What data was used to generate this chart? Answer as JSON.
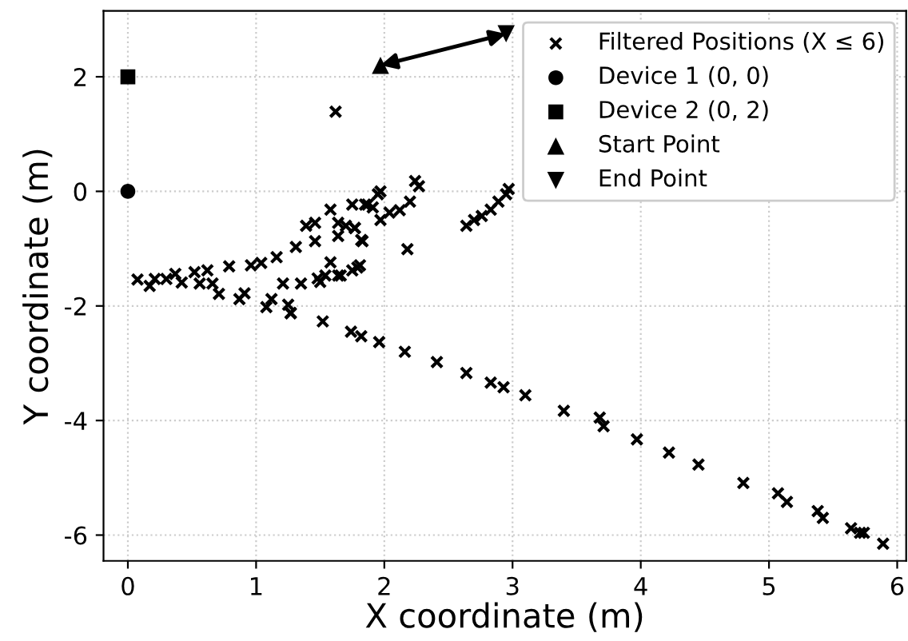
{
  "chart_data": {
    "type": "scatter",
    "xlabel": "X coordinate (m)",
    "ylabel": "Y coordinate (m)",
    "xlim": [
      -0.19,
      6.07
    ],
    "ylim": [
      -6.45,
      3.15
    ],
    "xticks": [
      0,
      1,
      2,
      3,
      4,
      5,
      6
    ],
    "yticks": [
      -6,
      -4,
      -2,
      0,
      2
    ],
    "grid": true,
    "legend": "top right",
    "series": [
      {
        "name": "Filtered Positions (X ≤ 6)",
        "color": "#000000",
        "marker": "cross",
        "x": [
          0.075,
          0.17,
          0.21,
          0.3,
          0.37,
          0.42,
          0.52,
          0.56,
          0.62,
          0.66,
          0.71,
          0.79,
          0.87,
          0.91,
          0.96,
          1.04,
          1.08,
          1.12,
          1.16,
          1.21,
          1.25,
          1.27,
          1.31,
          1.35,
          1.39,
          1.46,
          1.48,
          1.54,
          1.58,
          1.58,
          1.64,
          1.66,
          1.7,
          1.75,
          1.77,
          1.79,
          1.82,
          1.85,
          1.91,
          1.95,
          1.46,
          1.64,
          1.77,
          1.83,
          1.87,
          1.97,
          1.97,
          2.04,
          2.12,
          2.18,
          2.2,
          2.24,
          2.27,
          2.64,
          2.7,
          2.76,
          2.83,
          2.89,
          2.95,
          2.97,
          1.5,
          1.64,
          1.75,
          1.81,
          1.27,
          1.62,
          1.52,
          1.74,
          1.82,
          1.96,
          2.16,
          2.41,
          2.64,
          2.83,
          2.93,
          3.1,
          3.4,
          3.68,
          3.71,
          3.97,
          4.22,
          4.45,
          4.8,
          5.07,
          5.14,
          5.38,
          5.42,
          5.64,
          5.71,
          5.74,
          5.89
        ],
        "values": [
          -1.54,
          -1.65,
          -1.53,
          -1.53,
          -1.44,
          -1.59,
          -1.41,
          -1.61,
          -1.38,
          -1.61,
          -1.79,
          -1.31,
          -1.88,
          -1.78,
          -1.29,
          -1.25,
          -2.02,
          -1.88,
          -1.15,
          -1.61,
          -1.98,
          -2.13,
          -0.97,
          -1.61,
          -0.6,
          -0.55,
          -1.52,
          -1.47,
          -1.24,
          -0.32,
          -0.78,
          -1.47,
          -0.6,
          -0.23,
          -0.64,
          -1.33,
          -0.85,
          -0.23,
          -0.28,
          -0.05,
          -0.87,
          -0.55,
          -0.64,
          -0.87,
          -0.23,
          -0.5,
          0.0,
          -0.37,
          -0.33,
          -1.01,
          -0.18,
          0.18,
          0.09,
          -0.6,
          -0.5,
          -0.43,
          -0.32,
          -0.18,
          -0.05,
          0.04,
          -1.58,
          -1.47,
          -1.38,
          -1.29,
          -2.12,
          1.39,
          -2.27,
          -2.45,
          -2.53,
          -2.63,
          -2.8,
          -2.98,
          -3.17,
          -3.34,
          -3.42,
          -3.56,
          -3.83,
          -3.95,
          -4.1,
          -4.33,
          -4.56,
          -4.77,
          -5.09,
          -5.27,
          -5.42,
          -5.58,
          -5.7,
          -5.88,
          -5.96,
          -5.96,
          -6.15
        ]
      },
      {
        "name": "Device 1 (0, 0)",
        "color": "#000000",
        "marker": "circle",
        "x": [
          0
        ],
        "values": [
          0
        ]
      },
      {
        "name": "Device 2 (0, 2)",
        "color": "#000000",
        "marker": "square",
        "x": [
          0
        ],
        "values": [
          2
        ]
      },
      {
        "name": "Start Point",
        "color": "#000000",
        "marker": "triangle",
        "x": [
          1.97
        ],
        "values": [
          2.2
        ]
      },
      {
        "name": "End Point",
        "color": "#000000",
        "marker": "triangle_down",
        "x": [
          2.95
        ],
        "values": [
          2.75
        ]
      }
    ]
  }
}
